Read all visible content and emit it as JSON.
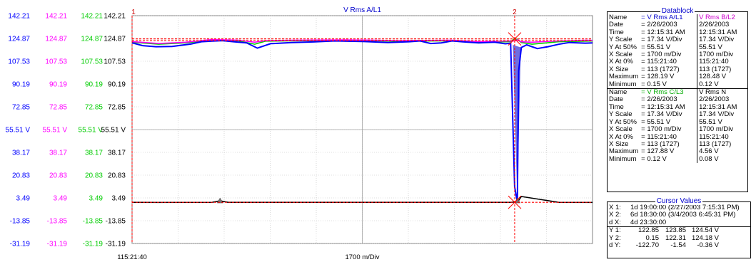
{
  "chart_data": {
    "type": "line",
    "title": "V Rms A/L1",
    "ylabel_columns": [
      {
        "color": "#0000ff",
        "ticks": [
          "142.21",
          "124.87",
          "107.53",
          "90.19",
          "72.85",
          "55.51 V",
          "38.17",
          "20.83",
          "3.49",
          "-13.85",
          "-31.19"
        ]
      },
      {
        "color": "#ff00ff",
        "ticks": [
          "142.21",
          "124.87",
          "107.53",
          "90.19",
          "72.85",
          "55.51 V",
          "38.17",
          "20.83",
          "3.49",
          "-13.85",
          "-31.19"
        ]
      },
      {
        "color": "#00cc00",
        "ticks": [
          "142.21",
          "124.87",
          "107.53",
          "90.19",
          "72.85",
          "55.51 V",
          "38.17",
          "20.83",
          "3.49",
          "-13.85",
          "-31.19"
        ]
      },
      {
        "color": "#000000",
        "ticks": [
          "142.21",
          "124.87",
          "107.53",
          "90.19",
          "72.85",
          "55.51 V",
          "38.17",
          "20.83",
          "3.49",
          "-13.85",
          "-31.19"
        ]
      }
    ],
    "ylim": [
      -31.19,
      142.21
    ],
    "xlim": [
      0,
      1727
    ],
    "x_start_label": "115:21:40",
    "x_scale_label": "1700 m/Div",
    "cursors": [
      {
        "label": "1",
        "x": 0
      },
      {
        "label": "2",
        "x": 1435
      }
    ],
    "series": [
      {
        "name": "V Rms A/L1",
        "color": "#0000ff",
        "x": [
          0,
          40,
          90,
          150,
          220,
          260,
          300,
          340,
          380,
          430,
          470,
          520,
          600,
          680,
          760,
          860,
          960,
          1040,
          1080,
          1120,
          1160,
          1200,
          1240,
          1300,
          1360,
          1400,
          1420,
          1435,
          1445,
          1450,
          1460,
          1480,
          1520,
          1560,
          1600,
          1640,
          1700,
          1727
        ],
        "y": [
          121.5,
          119.4,
          118.6,
          118.8,
          120.6,
          122.4,
          122.8,
          123.2,
          122.4,
          121.5,
          117.5,
          120.9,
          121.8,
          122.2,
          123.0,
          122.6,
          121.8,
          122.4,
          123.0,
          121.0,
          121.5,
          123.0,
          122.3,
          121.5,
          122.0,
          120.8,
          121.3,
          12.0,
          0.15,
          100,
          118.0,
          120.0,
          117.2,
          118.6,
          120.4,
          121.8,
          121.3,
          121.5
        ]
      },
      {
        "name": "V Rms B/L2",
        "color": "#ff00ff",
        "x": [
          0,
          100,
          200,
          300,
          400,
          460,
          500,
          600,
          800,
          1000,
          1200,
          1300,
          1420,
          1435,
          1445,
          1460,
          1500,
          1600,
          1700,
          1727
        ],
        "y": [
          122.5,
          121.0,
          122.0,
          124.0,
          123.5,
          122.0,
          123.2,
          123.5,
          123.8,
          123.2,
          123.5,
          122.5,
          123.0,
          122.9,
          123.85,
          122.31,
          122.0,
          123.0,
          123.5,
          123.4
        ]
      },
      {
        "name": "V Rms C/L3",
        "color": "#00cc00",
        "x": [
          0,
          100,
          200,
          300,
          400,
          460,
          500,
          600,
          800,
          1000,
          1200,
          1300,
          1420,
          1435,
          1445,
          1460,
          1500,
          1600,
          1700,
          1727
        ],
        "y": [
          122.0,
          120.5,
          121.5,
          123.6,
          123.0,
          120.5,
          122.8,
          123.1,
          123.4,
          122.8,
          123.1,
          121.8,
          122.5,
          124.54,
          124.18,
          121.8,
          120.5,
          122.4,
          122.8,
          122.9
        ]
      },
      {
        "name": "V Rms N",
        "color": "#000000",
        "x": [
          0,
          100,
          300,
          320,
          330,
          340,
          360,
          500,
          700,
          1000,
          1300,
          1420,
          1435,
          1445,
          1460,
          1600,
          1727
        ],
        "y": [
          0.12,
          0.1,
          0.12,
          0.9,
          1.3,
          0.9,
          0.12,
          0.12,
          0.12,
          0.12,
          0.12,
          0.12,
          0.36,
          0.12,
          4.56,
          0.12,
          0.08
        ]
      }
    ]
  },
  "datablock": {
    "title": "Datablock",
    "groups": [
      {
        "col1_header": "= V Rms A/L1",
        "col1_color": "#0000cc",
        "col2_header": "V Rms B/L2",
        "col2_color": "#cc00cc",
        "rows": [
          {
            "label": "Date",
            "v1": "= 2/26/2003",
            "v2": "2/26/2003"
          },
          {
            "label": "Time",
            "v1": "= 12:15:31 AM",
            "v2": "12:15:31 AM"
          },
          {
            "label": "Y Scale",
            "v1": "=    17.34 V/Div",
            "v2": "17.34 V/Div"
          },
          {
            "label": "Y At 50%",
            "v1": "=    55.51 V",
            "v2": "55.51 V"
          },
          {
            "label": "X Scale",
            "v1": "= 1700    m/Div",
            "v2": "1700    m/Div"
          },
          {
            "label": "X At 0%",
            "v1": "= 115:21:40",
            "v2": "115:21:40"
          },
          {
            "label": "X Size",
            "v1": "= 113 (1727)",
            "v2": "113 (1727)"
          },
          {
            "label": "Maximum",
            "v1": "=    128.19 V",
            "v2": "128.48 V"
          },
          {
            "label": "Minimum",
            "v1": "=       0.15 V",
            "v2": "0.12 V"
          }
        ]
      },
      {
        "col1_header": "= V Rms C/L3",
        "col1_color": "#00aa00",
        "col2_header": "V Rms N",
        "col2_color": "#000000",
        "rows": [
          {
            "label": "Date",
            "v1": "= 2/26/2003",
            "v2": "2/26/2003"
          },
          {
            "label": "Time",
            "v1": "= 12:15:31 AM",
            "v2": "12:15:31 AM"
          },
          {
            "label": "Y Scale",
            "v1": "=    17.34 V/Div",
            "v2": "17.34 V/Div"
          },
          {
            "label": "Y At 50%",
            "v1": "=    55.51 V",
            "v2": "55.51 V"
          },
          {
            "label": "X Scale",
            "v1": "= 1700    m/Div",
            "v2": "1700    m/Div"
          },
          {
            "label": "X At 0%",
            "v1": "= 115:21:40",
            "v2": "115:21:40"
          },
          {
            "label": "X Size",
            "v1": "= 113 (1727)",
            "v2": "113 (1727)"
          },
          {
            "label": "Maximum",
            "v1": "=    127.88 V",
            "v2": "4.56 V"
          },
          {
            "label": "Minimum",
            "v1": "=       0.12 V",
            "v2": "0.08 V"
          }
        ]
      }
    ],
    "row_label_suffix": "="
  },
  "cursor_values": {
    "title": "Cursor Values",
    "rows_x": [
      {
        "label": "X 1:",
        "value": "1d 19:00:00 (2/27/2003 7:15:31 PM)"
      },
      {
        "label": "X 2:",
        "value": "6d 18:30:00 (3/4/2003 6:45:31 PM)"
      },
      {
        "label": "d X:",
        "value": "4d 23:30:00"
      }
    ],
    "rows_y": [
      {
        "label": "Y 1:",
        "a": "122.85",
        "b": "123.85",
        "c": "124.54 V"
      },
      {
        "label": "Y 2:",
        "a": "0.15",
        "b": "122.31",
        "c": "124.18 V"
      },
      {
        "label": "d Y:",
        "a": "-122.70",
        "b": "-1.54",
        "c": "-0.36 V"
      }
    ]
  }
}
